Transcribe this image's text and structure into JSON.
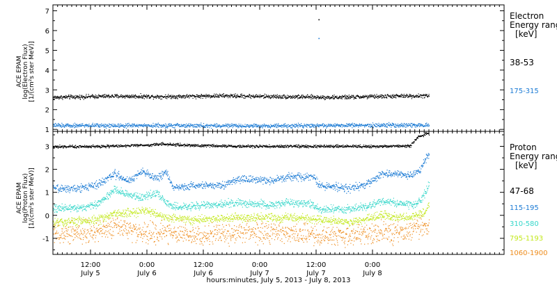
{
  "chart_data": [
    {
      "type": "scatter",
      "panel": "electron",
      "ylabel_lines": [
        "ACE EPAM",
        "log(Electron Flux)",
        "[1/(cm²s ster MeV)]"
      ],
      "ylim": [
        0.9,
        7.3
      ],
      "yticks": [
        1,
        2,
        3,
        4,
        5,
        6,
        7
      ],
      "legend_title": [
        "Electron",
        "Energy ranges",
        "[keV]"
      ],
      "legend_placement": "right",
      "series": [
        {
          "name": "38-53",
          "color": "#000000",
          "level": 2.65,
          "noise": 0.05,
          "keypoints": [
            [
              0,
              2.62
            ],
            [
              12,
              2.68
            ],
            [
              24,
              2.66
            ],
            [
              36,
              2.7
            ],
            [
              48,
              2.66
            ],
            [
              60,
              2.62
            ],
            [
              72,
              2.68
            ],
            [
              80,
              2.7
            ]
          ],
          "outliers": [
            [
              56.5,
              6.55
            ]
          ]
        },
        {
          "name": "175-315",
          "color": "#1a7ad4",
          "level": 1.2,
          "noise": 0.05,
          "keypoints": [
            [
              0,
              1.2
            ],
            [
              20,
              1.2
            ],
            [
              40,
              1.18
            ],
            [
              60,
              1.2
            ],
            [
              80,
              1.22
            ]
          ],
          "outliers": [
            [
              56.5,
              5.6
            ]
          ]
        }
      ]
    },
    {
      "type": "scatter",
      "panel": "proton",
      "ylabel_lines": [
        "ACE EPAM",
        "log(Proton Flux)",
        "[1/(cm²s ster MeV)]"
      ],
      "ylim": [
        -1.7,
        3.65
      ],
      "yticks": [
        -1,
        0,
        1,
        2,
        3
      ],
      "legend_title": [
        "Proton",
        "Energy ranges",
        "[keV]"
      ],
      "legend_placement": "right",
      "series": [
        {
          "name": "47-68",
          "color": "#000000",
          "noise": 0.03,
          "keypoints": [
            [
              0,
              2.98
            ],
            [
              10,
              3.0
            ],
            [
              20,
              3.05
            ],
            [
              23,
              3.1
            ],
            [
              28,
              3.05
            ],
            [
              40,
              3.0
            ],
            [
              55,
              3.0
            ],
            [
              70,
              3.0
            ],
            [
              76,
              3.02
            ],
            [
              77.5,
              3.4
            ],
            [
              79.5,
              3.55
            ],
            [
              80,
              3.55
            ]
          ]
        },
        {
          "name": "115-195",
          "color": "#1a7ad4",
          "noise": 0.08,
          "keypoints": [
            [
              0,
              1.15
            ],
            [
              7,
              1.2
            ],
            [
              10,
              1.4
            ],
            [
              13,
              1.8
            ],
            [
              16,
              1.5
            ],
            [
              19,
              1.9
            ],
            [
              22,
              1.6
            ],
            [
              24,
              1.9
            ],
            [
              25.5,
              1.2
            ],
            [
              30,
              1.3
            ],
            [
              36,
              1.3
            ],
            [
              40,
              1.6
            ],
            [
              46,
              1.5
            ],
            [
              50,
              1.65
            ],
            [
              55,
              1.7
            ],
            [
              57,
              1.3
            ],
            [
              63,
              1.15
            ],
            [
              67,
              1.4
            ],
            [
              70,
              1.8
            ],
            [
              76,
              1.75
            ],
            [
              78,
              1.9
            ],
            [
              79,
              2.4
            ],
            [
              80,
              2.65
            ]
          ]
        },
        {
          "name": "310-580",
          "color": "#33d6c9",
          "noise": 0.08,
          "keypoints": [
            [
              0,
              0.3
            ],
            [
              7,
              0.35
            ],
            [
              10,
              0.55
            ],
            [
              13,
              1.1
            ],
            [
              16,
              0.9
            ],
            [
              19,
              0.8
            ],
            [
              22,
              0.95
            ],
            [
              25.5,
              0.35
            ],
            [
              30,
              0.4
            ],
            [
              40,
              0.55
            ],
            [
              46,
              0.45
            ],
            [
              50,
              0.55
            ],
            [
              55,
              0.5
            ],
            [
              57,
              0.25
            ],
            [
              63,
              0.25
            ],
            [
              67,
              0.4
            ],
            [
              70,
              0.6
            ],
            [
              76,
              0.45
            ],
            [
              78,
              0.6
            ],
            [
              79.5,
              1.1
            ],
            [
              80,
              1.4
            ]
          ]
        },
        {
          "name": "795-1193",
          "color": "#c2e81a",
          "noise": 0.09,
          "keypoints": [
            [
              0,
              -0.3
            ],
            [
              10,
              -0.2
            ],
            [
              13,
              0.1
            ],
            [
              16,
              0.1
            ],
            [
              20,
              0.2
            ],
            [
              24,
              -0.1
            ],
            [
              30,
              -0.2
            ],
            [
              40,
              -0.1
            ],
            [
              50,
              -0.1
            ],
            [
              57,
              -0.2
            ],
            [
              63,
              -0.3
            ],
            [
              70,
              0.0
            ],
            [
              76,
              -0.1
            ],
            [
              79,
              0.1
            ],
            [
              80,
              0.5
            ]
          ]
        },
        {
          "name": "1060-1900",
          "color": "#ee8c1c",
          "noise": 0.22,
          "keypoints": [
            [
              0,
              -0.8
            ],
            [
              10,
              -0.7
            ],
            [
              13,
              -0.5
            ],
            [
              16,
              -0.7
            ],
            [
              20,
              -0.8
            ],
            [
              24,
              -0.7
            ],
            [
              30,
              -0.9
            ],
            [
              40,
              -0.7
            ],
            [
              50,
              -0.8
            ],
            [
              57,
              -0.9
            ],
            [
              63,
              -0.9
            ],
            [
              70,
              -0.75
            ],
            [
              76,
              -0.7
            ],
            [
              78,
              -0.5
            ],
            [
              80,
              -0.4
            ]
          ]
        }
      ]
    }
  ],
  "x_axis": {
    "xlim": [
      0,
      96
    ],
    "ticks": [
      {
        "x": 8,
        "time": "12:00",
        "day": "July 5"
      },
      {
        "x": 20,
        "time": "0:00",
        "day": "July 6"
      },
      {
        "x": 32,
        "time": "12:00",
        "day": "July 6"
      },
      {
        "x": 44,
        "time": "0:00",
        "day": "July 7"
      },
      {
        "x": 56,
        "time": "12:00",
        "day": "July 7"
      },
      {
        "x": 68,
        "time": "0:00",
        "day": "July 8"
      }
    ],
    "minor_step_hours": 1,
    "label": "hours:minutes, July  5, 2013 - July  8, 2013"
  }
}
